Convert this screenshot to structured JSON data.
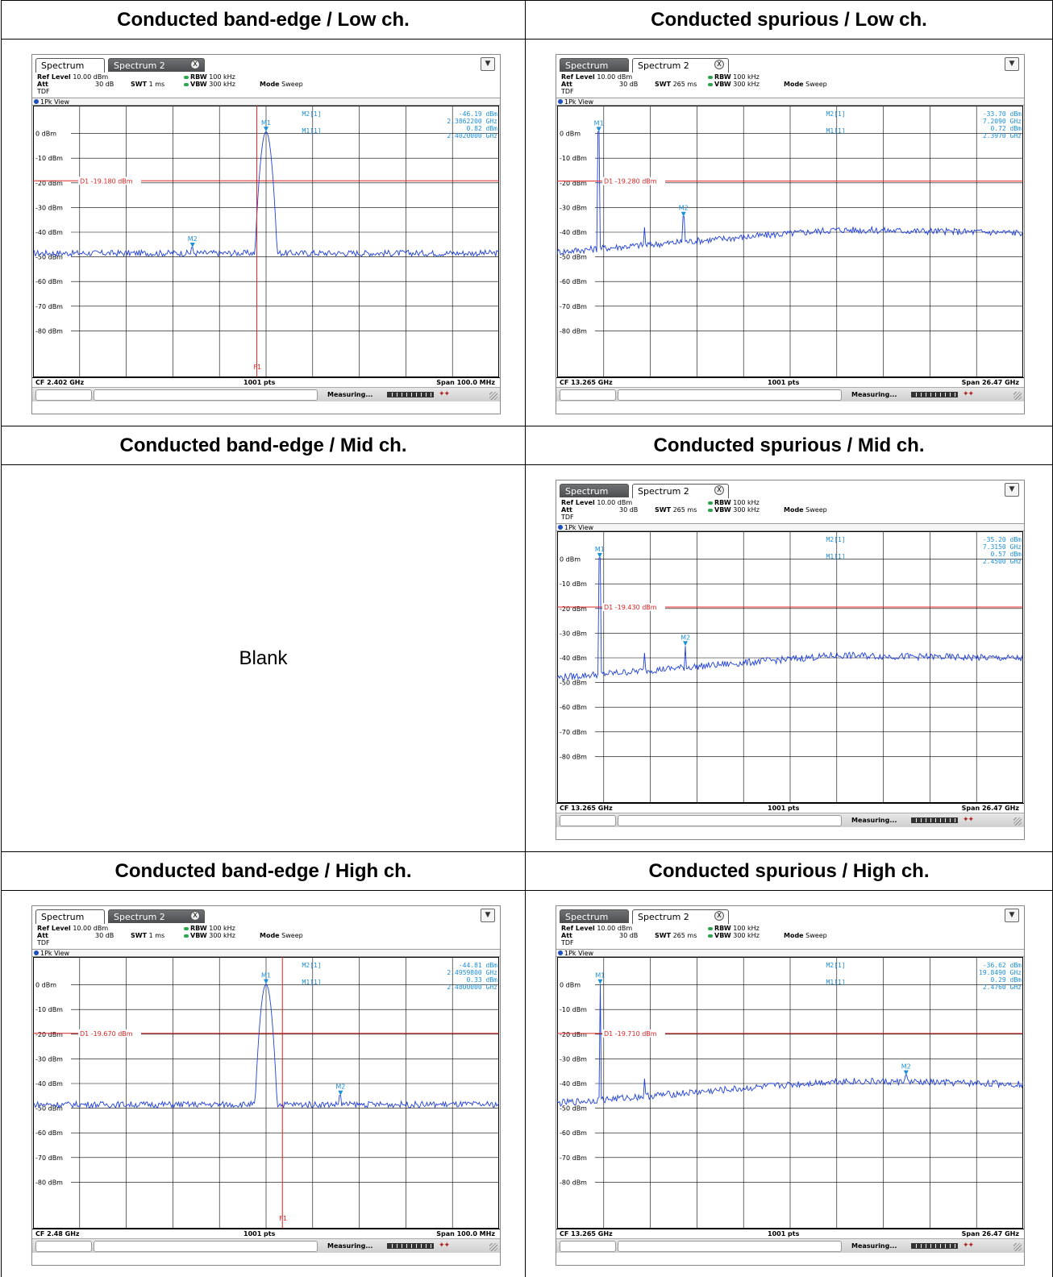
{
  "headers": {
    "low_bandedge": "Conducted band-edge / Low ch.",
    "low_spurious": "Conducted spurious / Low ch.",
    "mid_bandedge": "Conducted band-edge / Mid ch.",
    "mid_spurious": "Conducted spurious / Mid ch.",
    "high_bandedge": "Conducted band-edge / High ch.",
    "high_spurious": "Conducted spurious / High ch."
  },
  "blank_label": "Blank",
  "common": {
    "tab1": "Spectrum",
    "tab2": "Spectrum 2",
    "tab_close": "X",
    "ref_level_label": "Ref Level",
    "ref_level": "10.00 dBm",
    "att_label": "Att",
    "att": "30 dB",
    "tdf": "TDF",
    "swt_label": "SWT",
    "rbw_label": "RBW",
    "rbw": "100 kHz",
    "vbw_label": "VBW",
    "vbw": "300 kHz",
    "mode_label": "Mode",
    "mode": "Sweep",
    "view_label": "1Pk View",
    "points": "1001 pts",
    "status": "Measuring...",
    "m1_label": "M1[1]",
    "m2_label": "M2[1]",
    "y_ticks": [
      "0 dBm",
      "-10 dBm",
      "-20 dBm",
      "-30 dBm",
      "-40 dBm",
      "-50 dBm",
      "-60 dBm",
      "-70 dBm",
      "-80 dBm"
    ],
    "trace_color": "#1f3fdd",
    "limit_color": "#e02020",
    "marker_color": "#1e90d8"
  },
  "panels": {
    "low_be": {
      "active_tab": 1,
      "swt": "1 ms",
      "m2_value": "-46.19 dBm",
      "m2_freq": "2.3862200 GHz",
      "m1_value": "0.82 dBm",
      "m1_freq": "2.4020000 GHz",
      "d1": "D1 -19.180 dBm",
      "cf": "CF 2.402 GHz",
      "span": "Span 100.0 MHz",
      "f1_label": "F1",
      "chart_data": {
        "type": "line",
        "kind": "bandedge",
        "ylim": [
          -90,
          10
        ],
        "display_line_dbm": -19.18,
        "span_mhz": 100,
        "center_ghz": 2.402,
        "f1_ghz": 2.4,
        "m1": {
          "freq_ghz": 2.402,
          "level_dbm": 0.82
        },
        "m2": {
          "freq_ghz": 2.38622,
          "level_dbm": -46.19
        },
        "noise_floor_dbm": -48.5
      }
    },
    "low_sp": {
      "active_tab": 2,
      "swt": "265 ms",
      "m2_value": "-33.70 dBm",
      "m2_freq": "7.2090 GHz",
      "m1_value": "0.72 dBm",
      "m1_freq": "2.3970 GHz",
      "d1": "D1 -19.280 dBm",
      "cf": "CF 13.265 GHz",
      "span": "Span 26.47 GHz",
      "chart_data": {
        "type": "line",
        "kind": "spurious",
        "ylim": [
          -90,
          10
        ],
        "display_line_dbm": -19.28,
        "span_ghz": 26.47,
        "center_ghz": 13.265,
        "m1": {
          "freq_ghz": 2.397,
          "level_dbm": 0.72
        },
        "m2": {
          "freq_ghz": 7.209,
          "level_dbm": -33.7
        }
      }
    },
    "mid_sp": {
      "active_tab": 2,
      "swt": "265 ms",
      "m2_value": "-35.20 dBm",
      "m2_freq": "7.3150 GHz",
      "m1_value": "0.57 dBm",
      "m1_freq": "2.4500 GHz",
      "d1": "D1 -19.430 dBm",
      "cf": "CF 13.265 GHz",
      "span": "Span 26.47 GHz",
      "chart_data": {
        "type": "line",
        "kind": "spurious",
        "ylim": [
          -90,
          10
        ],
        "display_line_dbm": -19.43,
        "span_ghz": 26.47,
        "center_ghz": 13.265,
        "m1": {
          "freq_ghz": 2.45,
          "level_dbm": 0.57
        },
        "m2": {
          "freq_ghz": 7.315,
          "level_dbm": -35.2
        }
      }
    },
    "high_be": {
      "active_tab": 1,
      "swt": "1 ms",
      "m2_value": "-44.81 dBm",
      "m2_freq": "2.4959800 GHz",
      "m1_value": "0.33 dBm",
      "m1_freq": "2.4800000 GHz",
      "d1": "D1 -19.670 dBm",
      "cf": "CF 2.48 GHz",
      "span": "Span 100.0 MHz",
      "f1_label": "F1",
      "chart_data": {
        "type": "line",
        "kind": "bandedge",
        "ylim": [
          -90,
          10
        ],
        "display_line_dbm": -19.67,
        "span_mhz": 100,
        "center_ghz": 2.48,
        "f1_ghz": 2.4835,
        "m1": {
          "freq_ghz": 2.48,
          "level_dbm": 0.33
        },
        "m2": {
          "freq_ghz": 2.49598,
          "level_dbm": -44.81
        },
        "noise_floor_dbm": -48.5
      }
    },
    "high_sp": {
      "active_tab": 2,
      "swt": "265 ms",
      "m2_value": "-36.62 dBm",
      "m2_freq": "19.8490 GHz",
      "m1_value": "0.29 dBm",
      "m1_freq": "2.4760 GHz",
      "d1": "D1 -19.710 dBm",
      "cf": "CF 13.265 GHz",
      "span": "Span 26.47 GHz",
      "chart_data": {
        "type": "line",
        "kind": "spurious",
        "ylim": [
          -90,
          10
        ],
        "display_line_dbm": -19.71,
        "span_ghz": 26.47,
        "center_ghz": 13.265,
        "m1": {
          "freq_ghz": 2.476,
          "level_dbm": 0.29
        },
        "m2": {
          "freq_ghz": 19.849,
          "level_dbm": -36.62
        }
      }
    }
  }
}
